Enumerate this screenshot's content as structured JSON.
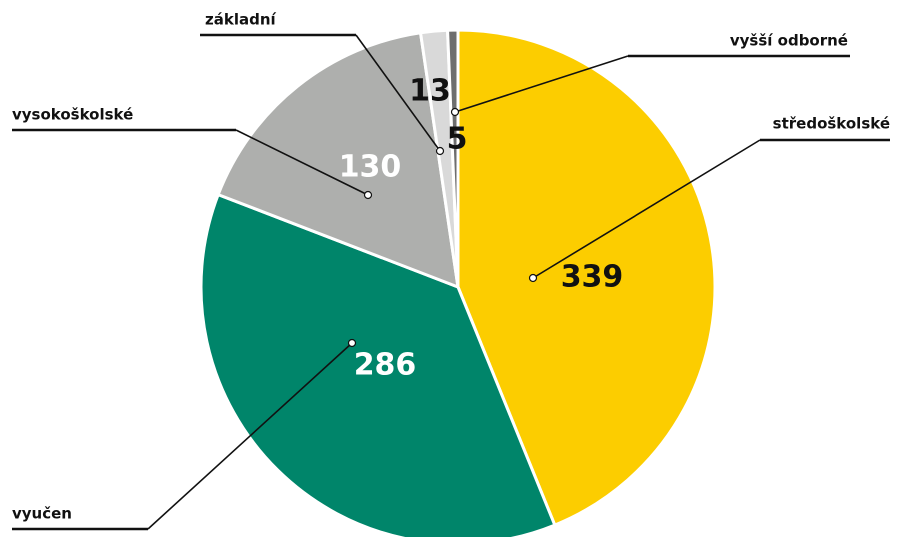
{
  "chart_data": {
    "type": "pie",
    "categories": [
      "středoškolské",
      "vyučen",
      "vysokoškolské",
      "základní",
      "vyšší odborné"
    ],
    "values": [
      339,
      286,
      130,
      13,
      5
    ],
    "colors": [
      "#fccd00",
      "#00856a",
      "#aeafad",
      "#d9d9d9",
      "#6e6e6e"
    ]
  }
}
